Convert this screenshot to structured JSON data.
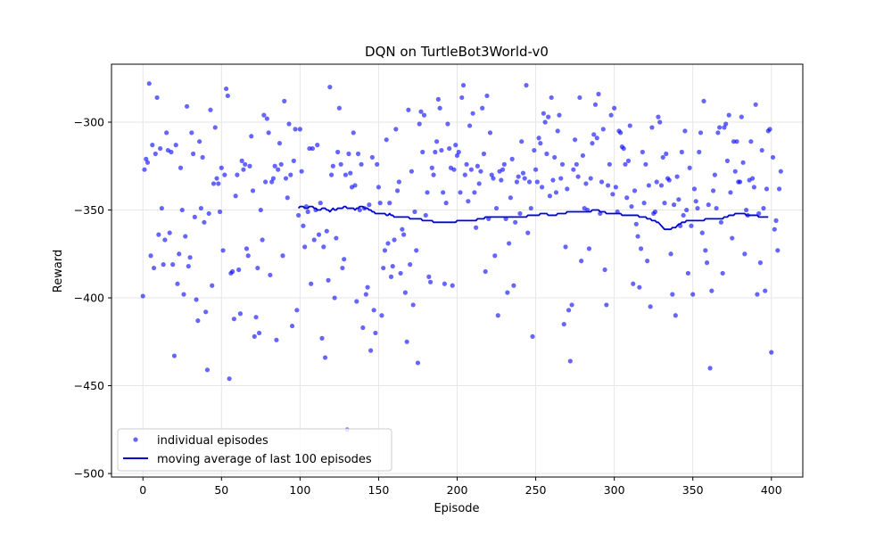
{
  "chart_data": {
    "type": "scatter",
    "title": "DQN on TurtleBot3World-v0",
    "xlabel": "Episode",
    "ylabel": "Reward",
    "xlim": [
      -20,
      420
    ],
    "ylim": [
      -502,
      -267
    ],
    "xticks": [
      0,
      50,
      100,
      150,
      200,
      250,
      300,
      350,
      400
    ],
    "yticks": [
      -500,
      -450,
      -400,
      -350,
      -300
    ],
    "ytick_labels": [
      "−500",
      "−450",
      "−400",
      "−350",
      "−300"
    ],
    "grid": true,
    "legend_position": "lower-left",
    "colors": {
      "points": "#0000ff",
      "line": "#0000dd"
    },
    "series": [
      {
        "name": "individual episodes",
        "kind": "scatter",
        "y": [
          -399,
          -327,
          -321,
          -323,
          -278,
          -376,
          -313,
          -383,
          -318,
          -286,
          -364,
          -315,
          -349,
          -381,
          -367,
          -306,
          -316,
          -363,
          -317,
          -381,
          -433,
          -313,
          -392,
          -375,
          -326,
          -350,
          -398,
          -365,
          -291,
          -382,
          -377,
          -306,
          -318,
          -354,
          -401,
          -413,
          -311,
          -349,
          -320,
          -357,
          -408,
          -441,
          -352,
          -293,
          -393,
          -335,
          -303,
          -332,
          -335,
          -351,
          -326,
          -373,
          -330,
          -281,
          -285,
          -446,
          -386,
          -385,
          -412,
          -342,
          -330,
          -384,
          -409,
          -322,
          -327,
          -324,
          -372,
          -376,
          -325,
          -308,
          -339,
          -422,
          -411,
          -383,
          -420,
          -350,
          -367,
          -296,
          -334,
          -298,
          -306,
          -387,
          -334,
          -332,
          -325,
          -424,
          -327,
          -312,
          -324,
          -376,
          -288,
          -332,
          -343,
          -301,
          -330,
          -416,
          -322,
          -304,
          -407,
          -353,
          -304,
          -328,
          -359,
          -371,
          -348,
          -351,
          -315,
          -392,
          -315,
          -367,
          -350,
          -313,
          -364,
          -346,
          -423,
          -371,
          -434,
          -362,
          -390,
          -280,
          -330,
          -325,
          -400,
          -366,
          -317,
          -292,
          -324,
          -383,
          -378,
          -330,
          -475,
          -318,
          -329,
          -337,
          -306,
          -336,
          -402,
          -318,
          -350,
          -324,
          -417,
          -349,
          -398,
          -394,
          -347,
          -430,
          -320,
          -407,
          -420,
          -324,
          -337,
          -346,
          -410,
          -383,
          -373,
          -310,
          -369,
          -346,
          -388,
          -382,
          -367,
          -304,
          -339,
          -334,
          -386,
          -361,
          -364,
          -397,
          -425,
          -293,
          -381,
          -328,
          -404,
          -351,
          -373,
          -437,
          -301,
          -294,
          -317,
          -296,
          -353,
          -340,
          -388,
          -391,
          -326,
          -330,
          -317,
          -311,
          -287,
          -292,
          -316,
          -340,
          -392,
          -346,
          -301,
          -315,
          -326,
          -393,
          -327,
          -313,
          -319,
          -317,
          -340,
          -286,
          -279,
          -330,
          -324,
          -345,
          -302,
          -327,
          -295,
          -340,
          -360,
          -325,
          -335,
          -328,
          -292,
          -318,
          -385,
          -285,
          -355,
          -306,
          -330,
          -332,
          -376,
          -349,
          -410,
          -328,
          -333,
          -327,
          -324,
          -355,
          -397,
          -369,
          -343,
          -321,
          -393,
          -357,
          -334,
          -331,
          -352,
          -311,
          -329,
          -332,
          -279,
          -363,
          -334,
          -349,
          -422,
          -316,
          -327,
          -334,
          -309,
          -312,
          -337,
          -295,
          -300,
          -318,
          -297,
          -342,
          -286,
          -333,
          -320,
          -340,
          -305,
          -296,
          -332,
          -324,
          -415,
          -371,
          -338,
          -407,
          -436,
          -404,
          -327,
          -310,
          -324,
          -331,
          -286,
          -379,
          -319,
          -349,
          -335,
          -350,
          -372,
          -332,
          -312,
          -307,
          -290,
          -309,
          -284,
          -352,
          -334,
          -304,
          -384,
          -404,
          -336,
          -324,
          -296,
          -341,
          -292,
          -337,
          -351,
          -305,
          -306,
          -314,
          -315,
          -324,
          -343,
          -322,
          -302,
          -348,
          -392,
          -339,
          -358,
          -365,
          -394,
          -372,
          -317,
          -346,
          -324,
          -379,
          -336,
          -405,
          -303,
          -352,
          -351,
          -334,
          -297,
          -300,
          -336,
          -320,
          -346,
          -318,
          -332,
          -333,
          -375,
          -398,
          -347,
          -410,
          -331,
          -344,
          -359,
          -317,
          -353,
          -305,
          -350,
          -386,
          -326,
          -359,
          -398,
          -338,
          -345,
          -349,
          -317,
          -306,
          -363,
          -288,
          -373,
          -380,
          -347,
          -440,
          -396,
          -339,
          -330,
          -349,
          -306,
          -303,
          -357,
          -386,
          -303,
          -301,
          -322,
          -296,
          -340,
          -366,
          -311,
          -328,
          -311,
          -334,
          -334,
          -297,
          -323,
          -375,
          -350,
          -353,
          -333,
          -311,
          -332,
          -337,
          -290,
          -398,
          -352,
          -380,
          -316,
          -349,
          -396,
          -338,
          -305,
          -304,
          -431,
          -320,
          -361,
          -356,
          -373,
          -338,
          -328
        ]
      },
      {
        "name": "moving average of last 100 episodes",
        "kind": "line",
        "x_start": 99,
        "y": [
          -349,
          -348,
          -348,
          -348,
          -349,
          -349,
          -349,
          -348,
          -348,
          -348,
          -349,
          -349,
          -350,
          -350,
          -350,
          -349,
          -349,
          -349,
          -350,
          -350,
          -351,
          -350,
          -349,
          -350,
          -350,
          -349,
          -349,
          -349,
          -349,
          -348,
          -348,
          -349,
          -349,
          -349,
          -349,
          -349,
          -350,
          -349,
          -349,
          -348,
          -348,
          -348,
          -349,
          -349,
          -349,
          -350,
          -350,
          -351,
          -351,
          -352,
          -352,
          -352,
          -352,
          -352,
          -352,
          -352,
          -353,
          -353,
          -352,
          -353,
          -353,
          -354,
          -354,
          -354,
          -354,
          -354,
          -354,
          -354,
          -354,
          -354,
          -354,
          -355,
          -355,
          -355,
          -355,
          -355,
          -355,
          -355,
          -355,
          -356,
          -356,
          -356,
          -356,
          -356,
          -356,
          -356,
          -357,
          -357,
          -357,
          -357,
          -357,
          -357,
          -357,
          -357,
          -357,
          -357,
          -357,
          -357,
          -357,
          -357,
          -357,
          -356,
          -356,
          -356,
          -356,
          -356,
          -356,
          -356,
          -356,
          -356,
          -356,
          -356,
          -356,
          -356,
          -355,
          -355,
          -355,
          -355,
          -355,
          -354,
          -354,
          -354,
          -354,
          -354,
          -354,
          -354,
          -354,
          -354,
          -354,
          -354,
          -354,
          -354,
          -354,
          -354,
          -354,
          -354,
          -354,
          -354,
          -354,
          -354,
          -354,
          -354,
          -354,
          -354,
          -354,
          -354,
          -353,
          -353,
          -353,
          -353,
          -353,
          -353,
          -353,
          -353,
          -352,
          -352,
          -352,
          -352,
          -352,
          -353,
          -353,
          -353,
          -353,
          -353,
          -353,
          -352,
          -352,
          -352,
          -352,
          -352,
          -352,
          -351,
          -351,
          -351,
          -351,
          -351,
          -351,
          -351,
          -351,
          -351,
          -351,
          -351,
          -351,
          -351,
          -351,
          -351,
          -351,
          -350,
          -350,
          -350,
          -350,
          -350,
          -351,
          -351,
          -351,
          -351,
          -352,
          -352,
          -352,
          -352,
          -352,
          -352,
          -352,
          -352,
          -352,
          -352,
          -353,
          -353,
          -353,
          -353,
          -353,
          -353,
          -353,
          -353,
          -353,
          -353,
          -353,
          -354,
          -354,
          -354,
          -354,
          -354,
          -355,
          -355,
          -355,
          -356,
          -356,
          -356,
          -357,
          -357,
          -358,
          -359,
          -360,
          -361,
          -361,
          -361,
          -361,
          -361,
          -360,
          -360,
          -360,
          -359,
          -358,
          -358,
          -357,
          -357,
          -357,
          -356,
          -356,
          -356,
          -356,
          -356,
          -356,
          -356,
          -356,
          -356,
          -356,
          -356,
          -356,
          -355,
          -355,
          -355,
          -355,
          -355,
          -355,
          -355,
          -355,
          -355,
          -355,
          -355,
          -355,
          -354,
          -354,
          -354,
          -353,
          -353,
          -353,
          -353,
          -352,
          -352,
          -352,
          -352,
          -352,
          -352,
          -352,
          -353,
          -353,
          -353,
          -353,
          -353,
          -353,
          -353,
          -353,
          -354,
          -354,
          -354,
          -354,
          -354,
          -354,
          -354
        ]
      }
    ]
  }
}
